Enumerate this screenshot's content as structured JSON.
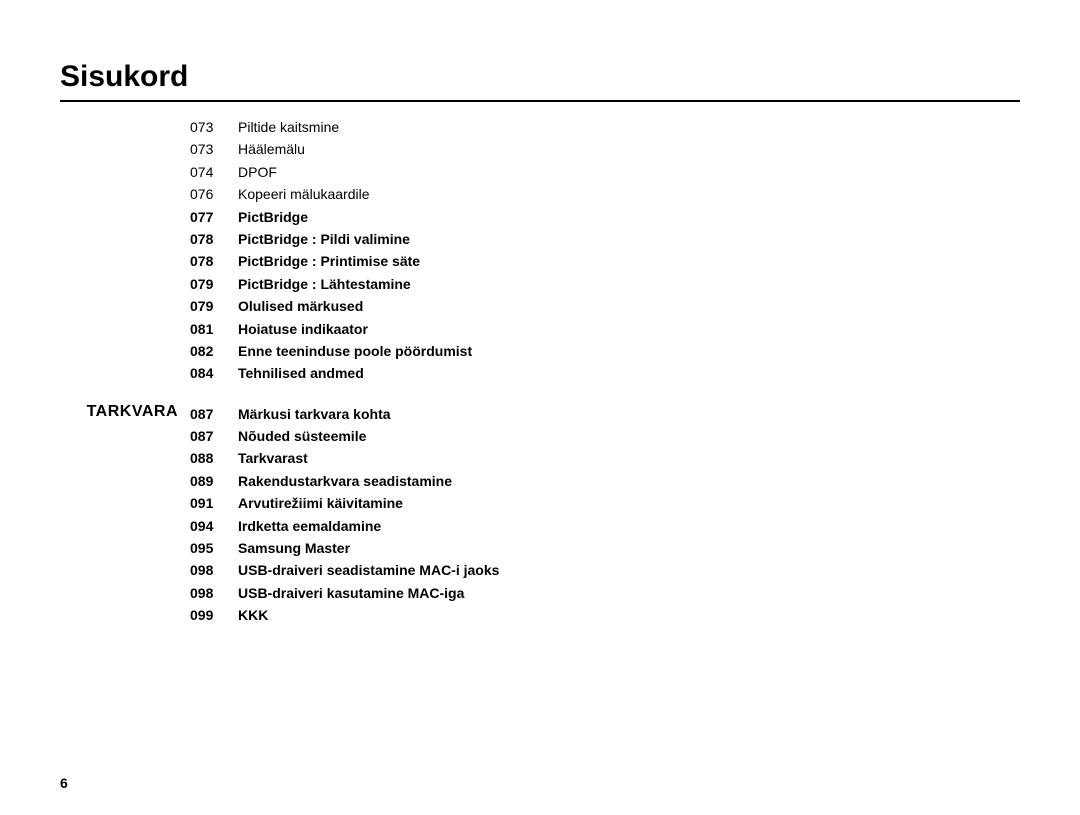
{
  "title": "Sisukord",
  "page_number": "6",
  "groups": [
    {
      "section": "",
      "entries": [
        {
          "page": "073",
          "label": "Piltide kaitsmine",
          "bold": false
        },
        {
          "page": "073",
          "label": "Häälemälu",
          "bold": false
        },
        {
          "page": "074",
          "label": "DPOF",
          "bold": false
        },
        {
          "page": "076",
          "label": "Kopeeri mälukaardile",
          "bold": false
        },
        {
          "page": "077",
          "label": "PictBridge",
          "bold": true
        },
        {
          "page": "078",
          "label": "PictBridge : Pildi valimine",
          "bold": true
        },
        {
          "page": "078",
          "label": "PictBridge : Printimise säte",
          "bold": true
        },
        {
          "page": "079",
          "label": "PictBridge : Lähtestamine",
          "bold": true
        },
        {
          "page": "079",
          "label": "Olulised märkused",
          "bold": true
        },
        {
          "page": "081",
          "label": "Hoiatuse indikaator",
          "bold": true
        },
        {
          "page": "082",
          "label": "Enne teeninduse poole pöördumist",
          "bold": true
        },
        {
          "page": "084",
          "label": "Tehnilised andmed",
          "bold": true
        }
      ]
    },
    {
      "section": "TARKVARA",
      "entries": [
        {
          "page": "087",
          "label": "Märkusi tarkvara kohta",
          "bold": true
        },
        {
          "page": "087",
          "label": "Nõuded süsteemile",
          "bold": true
        },
        {
          "page": "088",
          "label": "Tarkvarast",
          "bold": true
        },
        {
          "page": "089",
          "label": "Rakendustarkvara seadistamine",
          "bold": true
        },
        {
          "page": "091",
          "label": "Arvutirežiimi käivitamine",
          "bold": true
        },
        {
          "page": "094",
          "label": "Irdketta eemaldamine",
          "bold": true
        },
        {
          "page": "095",
          "label": "Samsung Master",
          "bold": true
        },
        {
          "page": "098",
          "label": "USB-draiveri seadistamine MAC-i jaoks",
          "bold": true
        },
        {
          "page": "098",
          "label": "USB-draiveri kasutamine MAC-iga",
          "bold": true
        },
        {
          "page": "099",
          "label": "KKK",
          "bold": true
        }
      ]
    }
  ]
}
